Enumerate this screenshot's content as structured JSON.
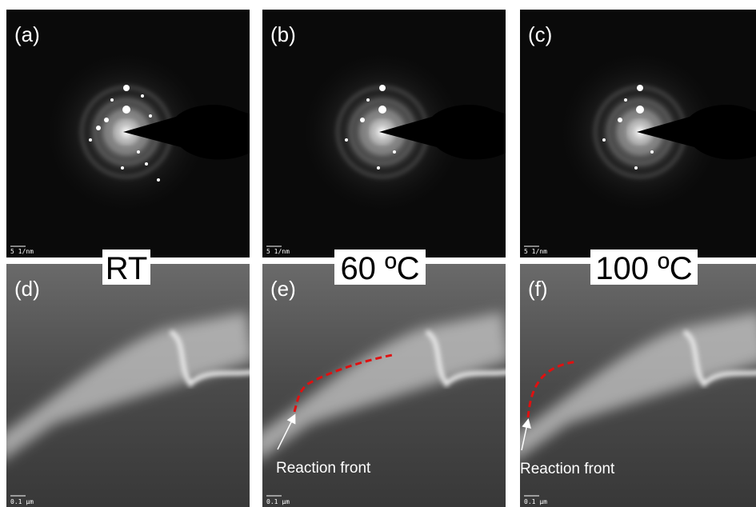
{
  "panels": [
    {
      "label": "(a)",
      "scale_bar": "5 1/nm"
    },
    {
      "label": "(b)",
      "scale_bar": "5 1/nm"
    },
    {
      "label": "(c)",
      "scale_bar": "5 1/nm"
    },
    {
      "label": "(d)",
      "scale_bar": "0.1 µm"
    },
    {
      "label": "(e)",
      "scale_bar": "0.1 µm",
      "annotation": "Reaction front"
    },
    {
      "label": "(f)",
      "scale_bar": "0.1 µm",
      "annotation": "Reaction front"
    }
  ],
  "temperatures": [
    "RT",
    "60 ºC",
    "100 ºC"
  ]
}
